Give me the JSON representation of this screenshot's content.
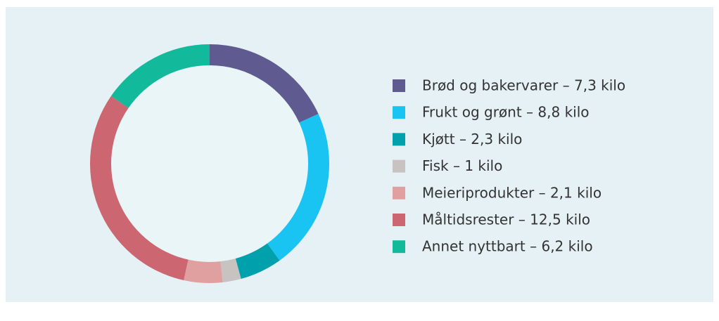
{
  "chart_data": {
    "type": "donut",
    "categories": [
      "Brød og bakervarer – 7,3 kilo",
      "Frukt og grønt – 8,8 kilo",
      "Kjøtt – 2,3 kilo",
      "Fisk – 1 kilo",
      "Meieriprodukter – 2,1 kilo",
      "Måltidsrester – 12,5 kilo",
      "Annet nyttbart – 6,2 kilo"
    ],
    "values": [
      7.3,
      8.8,
      2.3,
      1,
      2.1,
      12.5,
      6.2
    ],
    "colors": [
      "#5f5a8f",
      "#19c3f2",
      "#00a0ad",
      "#c8c3c0",
      "#e0a0a0",
      "#cc6670",
      "#12b99a"
    ],
    "legend": "right"
  }
}
